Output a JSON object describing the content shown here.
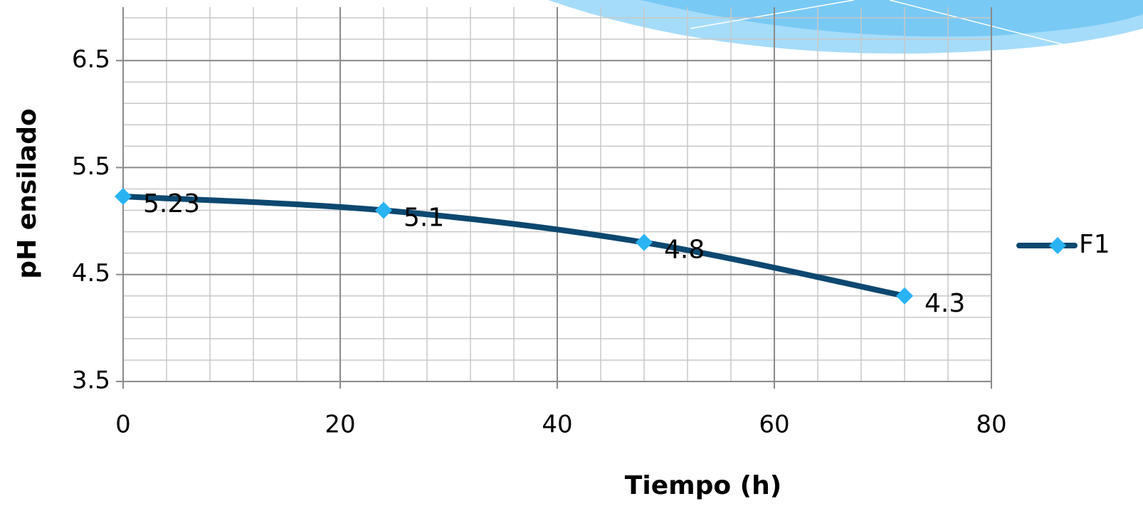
{
  "chart_data": {
    "type": "line",
    "x_label": "Tiempo (h)",
    "y_label": "pH ensilado",
    "x": [
      0,
      24,
      48,
      72
    ],
    "series": [
      {
        "name": "F1",
        "color": "#0d4870",
        "marker_color": "#29b3f2",
        "values": [
          5.23,
          5.1,
          4.8,
          4.3
        ]
      }
    ],
    "xlim": [
      0,
      80
    ],
    "xticks": [
      0,
      20,
      40,
      60,
      80
    ],
    "ylim": [
      3.5,
      7
    ],
    "yticks": [
      3.5,
      4.5,
      5.5,
      6.5
    ],
    "grid": true,
    "smooth": true,
    "data_labels": true,
    "legend": "right"
  }
}
